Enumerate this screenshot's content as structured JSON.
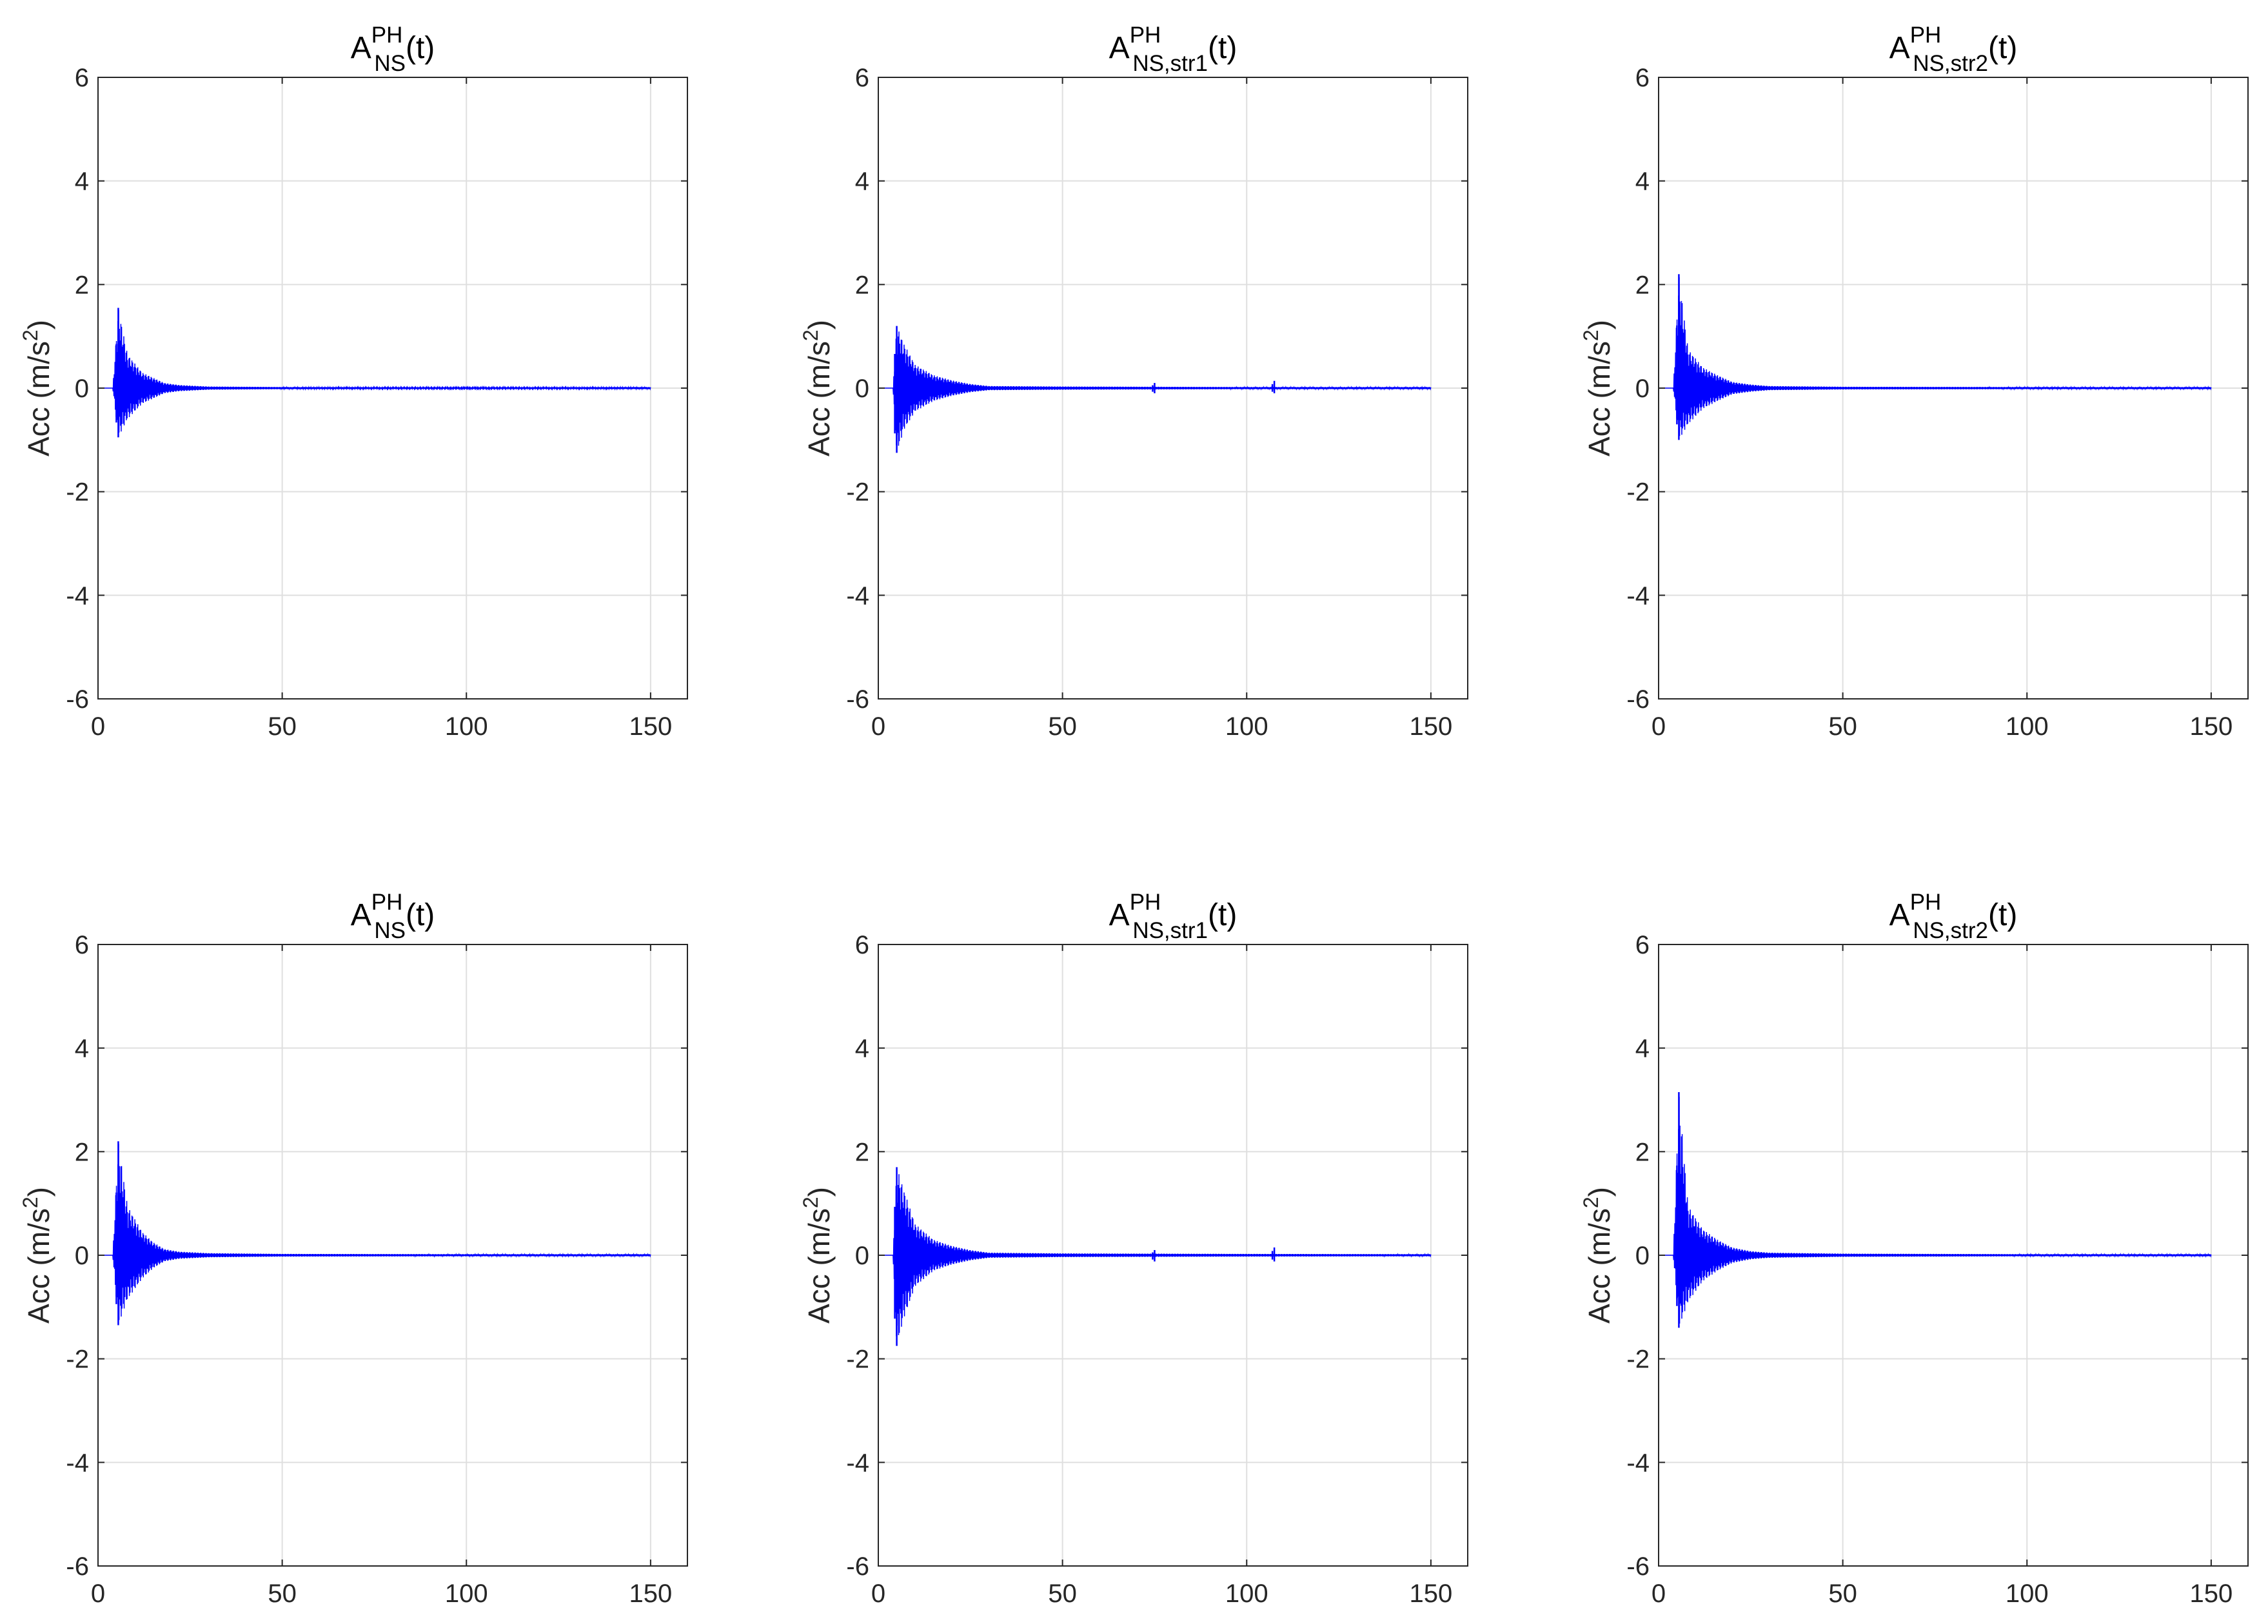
{
  "figure": {
    "colors": {
      "signal": "#0000FF",
      "grid": "#DFDFDF",
      "axes": "#262626",
      "background": "#FFFFFF"
    }
  },
  "chart_data": [
    {
      "type": "line",
      "title": {
        "main": "A",
        "sup": "PH",
        "sub": "NS",
        "tail": "(t)"
      },
      "ylabel": {
        "main": "Acc (m/s",
        "sup": "2",
        "tail": ")"
      },
      "xlim": [
        0,
        160
      ],
      "ylim": [
        -6,
        6
      ],
      "xticks": [
        0,
        50,
        100,
        150
      ],
      "yticks": [
        -6,
        -4,
        -2,
        0,
        2,
        4,
        6
      ],
      "grid": true,
      "x": [
        0,
        4,
        5.5,
        8,
        12,
        15,
        18,
        22,
        30,
        50,
        100,
        150
      ],
      "envelope_upper": [
        0,
        0,
        1.55,
        0.65,
        0.3,
        0.2,
        0.1,
        0.06,
        0.03,
        0.02,
        0.015,
        0.02
      ],
      "envelope_lower": [
        0,
        0,
        -0.95,
        -0.6,
        -0.3,
        -0.2,
        -0.1,
        -0.06,
        -0.03,
        -0.02,
        -0.015,
        -0.02
      ],
      "spikes": [
        {
          "x": 5.5,
          "peak": 1.55,
          "trough": -0.95
        }
      ]
    },
    {
      "type": "line",
      "title": {
        "main": "A",
        "sup": "PH",
        "sub": "NS,str1",
        "tail": "(t)"
      },
      "ylabel": {
        "main": "Acc (m/s",
        "sup": "2",
        "tail": ")"
      },
      "xlim": [
        0,
        160
      ],
      "ylim": [
        -6,
        6
      ],
      "xticks": [
        0,
        50,
        100,
        150
      ],
      "yticks": [
        -6,
        -4,
        -2,
        0,
        2,
        4,
        6
      ],
      "grid": true,
      "x": [
        0,
        4,
        5,
        7,
        10,
        15,
        20,
        25,
        30,
        50,
        100,
        150
      ],
      "envelope_upper": [
        0,
        0,
        1.2,
        0.85,
        0.45,
        0.25,
        0.15,
        0.08,
        0.04,
        0.03,
        0.02,
        0.02
      ],
      "envelope_lower": [
        0,
        0,
        -1.25,
        -0.8,
        -0.45,
        -0.25,
        -0.15,
        -0.08,
        -0.04,
        -0.03,
        -0.02,
        -0.02
      ],
      "spikes": [
        {
          "x": 5,
          "peak": 1.2,
          "trough": -1.25
        },
        {
          "x": 75,
          "peak": 0.1,
          "trough": -0.1
        },
        {
          "x": 107.5,
          "peak": 0.14,
          "trough": -0.1
        }
      ]
    },
    {
      "type": "line",
      "title": {
        "main": "A",
        "sup": "PH",
        "sub": "NS,str2",
        "tail": "(t)"
      },
      "ylabel": {
        "main": "Acc (m/s",
        "sup": "2",
        "tail": ")"
      },
      "xlim": [
        0,
        160
      ],
      "ylim": [
        -6,
        6
      ],
      "xticks": [
        0,
        50,
        100,
        150
      ],
      "yticks": [
        -6,
        -4,
        -2,
        0,
        2,
        4,
        6
      ],
      "grid": true,
      "x": [
        0,
        4,
        5.5,
        8,
        12,
        16,
        20,
        25,
        30,
        50,
        100,
        150
      ],
      "envelope_upper": [
        0,
        0,
        2.2,
        0.75,
        0.4,
        0.25,
        0.12,
        0.07,
        0.04,
        0.025,
        0.02,
        0.02
      ],
      "envelope_lower": [
        0,
        0,
        -1.0,
        -0.7,
        -0.4,
        -0.25,
        -0.12,
        -0.07,
        -0.04,
        -0.025,
        -0.02,
        -0.02
      ],
      "spikes": [
        {
          "x": 5.5,
          "peak": 2.2,
          "trough": -1.0
        }
      ]
    },
    {
      "type": "line",
      "title": {
        "main": "A",
        "sup": "PH",
        "sub": "NS",
        "tail": "(t)"
      },
      "ylabel": {
        "main": "Acc (m/s",
        "sup": "2",
        "tail": ")"
      },
      "xlim": [
        0,
        160
      ],
      "ylim": [
        -6,
        6
      ],
      "xticks": [
        0,
        50,
        100,
        150
      ],
      "yticks": [
        -6,
        -4,
        -2,
        0,
        2,
        4,
        6
      ],
      "grid": true,
      "x": [
        0,
        4,
        5.5,
        8,
        12,
        15,
        18,
        22,
        30,
        50,
        100,
        150
      ],
      "envelope_upper": [
        0,
        0,
        2.2,
        0.95,
        0.45,
        0.25,
        0.12,
        0.07,
        0.04,
        0.025,
        0.02,
        0.02
      ],
      "envelope_lower": [
        0,
        0,
        -1.35,
        -0.85,
        -0.45,
        -0.25,
        -0.12,
        -0.07,
        -0.04,
        -0.025,
        -0.02,
        -0.02
      ],
      "spikes": [
        {
          "x": 5.5,
          "peak": 2.2,
          "trough": -1.35
        }
      ]
    },
    {
      "type": "line",
      "title": {
        "main": "A",
        "sup": "PH",
        "sub": "NS,str1",
        "tail": "(t)"
      },
      "ylabel": {
        "main": "Acc (m/s",
        "sup": "2",
        "tail": ")"
      },
      "xlim": [
        0,
        160
      ],
      "ylim": [
        -6,
        6
      ],
      "xticks": [
        0,
        50,
        100,
        150
      ],
      "yticks": [
        -6,
        -4,
        -2,
        0,
        2,
        4,
        6
      ],
      "grid": true,
      "x": [
        0,
        4,
        5,
        7,
        10,
        15,
        20,
        25,
        30,
        50,
        100,
        150
      ],
      "envelope_upper": [
        0,
        0,
        1.7,
        1.25,
        0.6,
        0.3,
        0.18,
        0.1,
        0.05,
        0.035,
        0.025,
        0.02
      ],
      "envelope_lower": [
        0,
        0,
        -1.75,
        -1.2,
        -0.6,
        -0.3,
        -0.18,
        -0.1,
        -0.05,
        -0.035,
        -0.025,
        -0.02
      ],
      "spikes": [
        {
          "x": 5,
          "peak": 1.7,
          "trough": -1.75
        },
        {
          "x": 75,
          "peak": 0.1,
          "trough": -0.12
        },
        {
          "x": 107.5,
          "peak": 0.15,
          "trough": -0.12
        }
      ]
    },
    {
      "type": "line",
      "title": {
        "main": "A",
        "sup": "PH",
        "sub": "NS,str2",
        "tail": "(t)"
      },
      "ylabel": {
        "main": "Acc (m/s",
        "sup": "2",
        "tail": ")"
      },
      "xlim": [
        0,
        160
      ],
      "ylim": [
        -6,
        6
      ],
      "xticks": [
        0,
        50,
        100,
        150
      ],
      "yticks": [
        -6,
        -4,
        -2,
        0,
        2,
        4,
        6
      ],
      "grid": true,
      "x": [
        0,
        4,
        5.5,
        8,
        12,
        16,
        20,
        25,
        30,
        50,
        100,
        150
      ],
      "envelope_upper": [
        0,
        0,
        3.15,
        0.95,
        0.5,
        0.3,
        0.15,
        0.08,
        0.05,
        0.03,
        0.02,
        0.02
      ],
      "envelope_lower": [
        0,
        0,
        -1.4,
        -0.9,
        -0.5,
        -0.3,
        -0.15,
        -0.08,
        -0.05,
        -0.03,
        -0.02,
        -0.02
      ],
      "spikes": [
        {
          "x": 5.5,
          "peak": 3.15,
          "trough": -1.4
        }
      ]
    }
  ]
}
